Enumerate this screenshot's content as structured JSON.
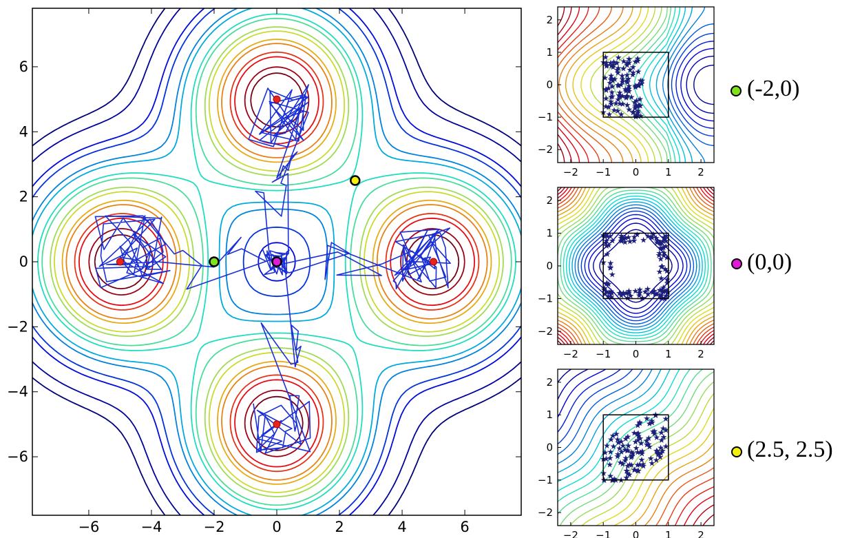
{
  "chart_data": [
    {
      "type": "contour",
      "panel": "main",
      "xlim": [
        -7.8,
        7.8
      ],
      "ylim": [
        -7.8,
        7.8
      ],
      "xticks": [
        -6,
        -4,
        -2,
        0,
        2,
        4,
        6
      ],
      "yticks": [
        -6,
        -4,
        -2,
        0,
        2,
        4,
        6
      ],
      "tick_labels": [
        "−6",
        "−4",
        "−2",
        "0",
        "2",
        "4",
        "6"
      ],
      "grid": false,
      "contour_levels": [
        0.2,
        0.3,
        0.5,
        0.6,
        0.8,
        0.9,
        1.1,
        1.2,
        1.4,
        1.5,
        1.7,
        1.8,
        2.0,
        2.1,
        2.3,
        2.4
      ],
      "modes": [
        [
          0,
          5
        ],
        [
          0,
          -5
        ],
        [
          -5,
          0
        ],
        [
          5,
          0
        ]
      ],
      "mode_color": "#e8241d",
      "trajectory_color": "#1a2fd6",
      "markers": [
        {
          "label": "(-2,0)",
          "x": -2,
          "y": 0,
          "color": "#7fe11b"
        },
        {
          "label": "(0,0)",
          "x": 0,
          "y": 0,
          "color": "#e11bd6"
        },
        {
          "label": "(2.5, 2.5)",
          "x": 2.5,
          "y": 2.5,
          "color": "#f4f00c"
        }
      ]
    },
    {
      "type": "contour",
      "panel": "inset",
      "marker": "(-2,0)",
      "xlim": [
        -2.4,
        2.4
      ],
      "ylim": [
        -2.4,
        2.4
      ],
      "xticks": [
        -2,
        -1,
        0,
        1,
        2
      ],
      "yticks": [
        -2,
        -1,
        0,
        1,
        2
      ],
      "contour_levels": [
        11,
        12,
        13,
        14,
        16,
        17,
        18,
        19,
        20,
        21,
        22
      ],
      "box": [
        -1,
        1,
        -1,
        1
      ]
    },
    {
      "type": "contour",
      "panel": "inset",
      "marker": "(0,0)",
      "xlim": [
        -2.4,
        2.4
      ],
      "ylim": [
        -2.4,
        2.4
      ],
      "xticks": [
        -2,
        -1,
        0,
        1,
        2
      ],
      "yticks": [
        -2,
        -1,
        0,
        1,
        2
      ],
      "contour_levels": [
        15,
        16
      ],
      "box": [
        -1,
        1,
        -1,
        1
      ]
    },
    {
      "type": "contour",
      "panel": "inset",
      "marker": "(2.5, 2.5)",
      "xlim": [
        -2.4,
        2.4
      ],
      "ylim": [
        -2.4,
        2.4
      ],
      "xticks": [
        -2,
        -1,
        0,
        1,
        2
      ],
      "yticks": [
        -2,
        -1,
        0,
        1,
        2
      ],
      "contour_levels": [
        14,
        15,
        16,
        17,
        18,
        19,
        20,
        21,
        22
      ],
      "box": [
        -1,
        1,
        -1,
        1
      ]
    }
  ],
  "legend": [
    {
      "label": "(-2,0)",
      "color": "#7fe11b"
    },
    {
      "label": "(0,0)",
      "color": "#e11bd6"
    },
    {
      "label": "(2.5, 2.5)",
      "color": "#f4f00c"
    }
  ]
}
